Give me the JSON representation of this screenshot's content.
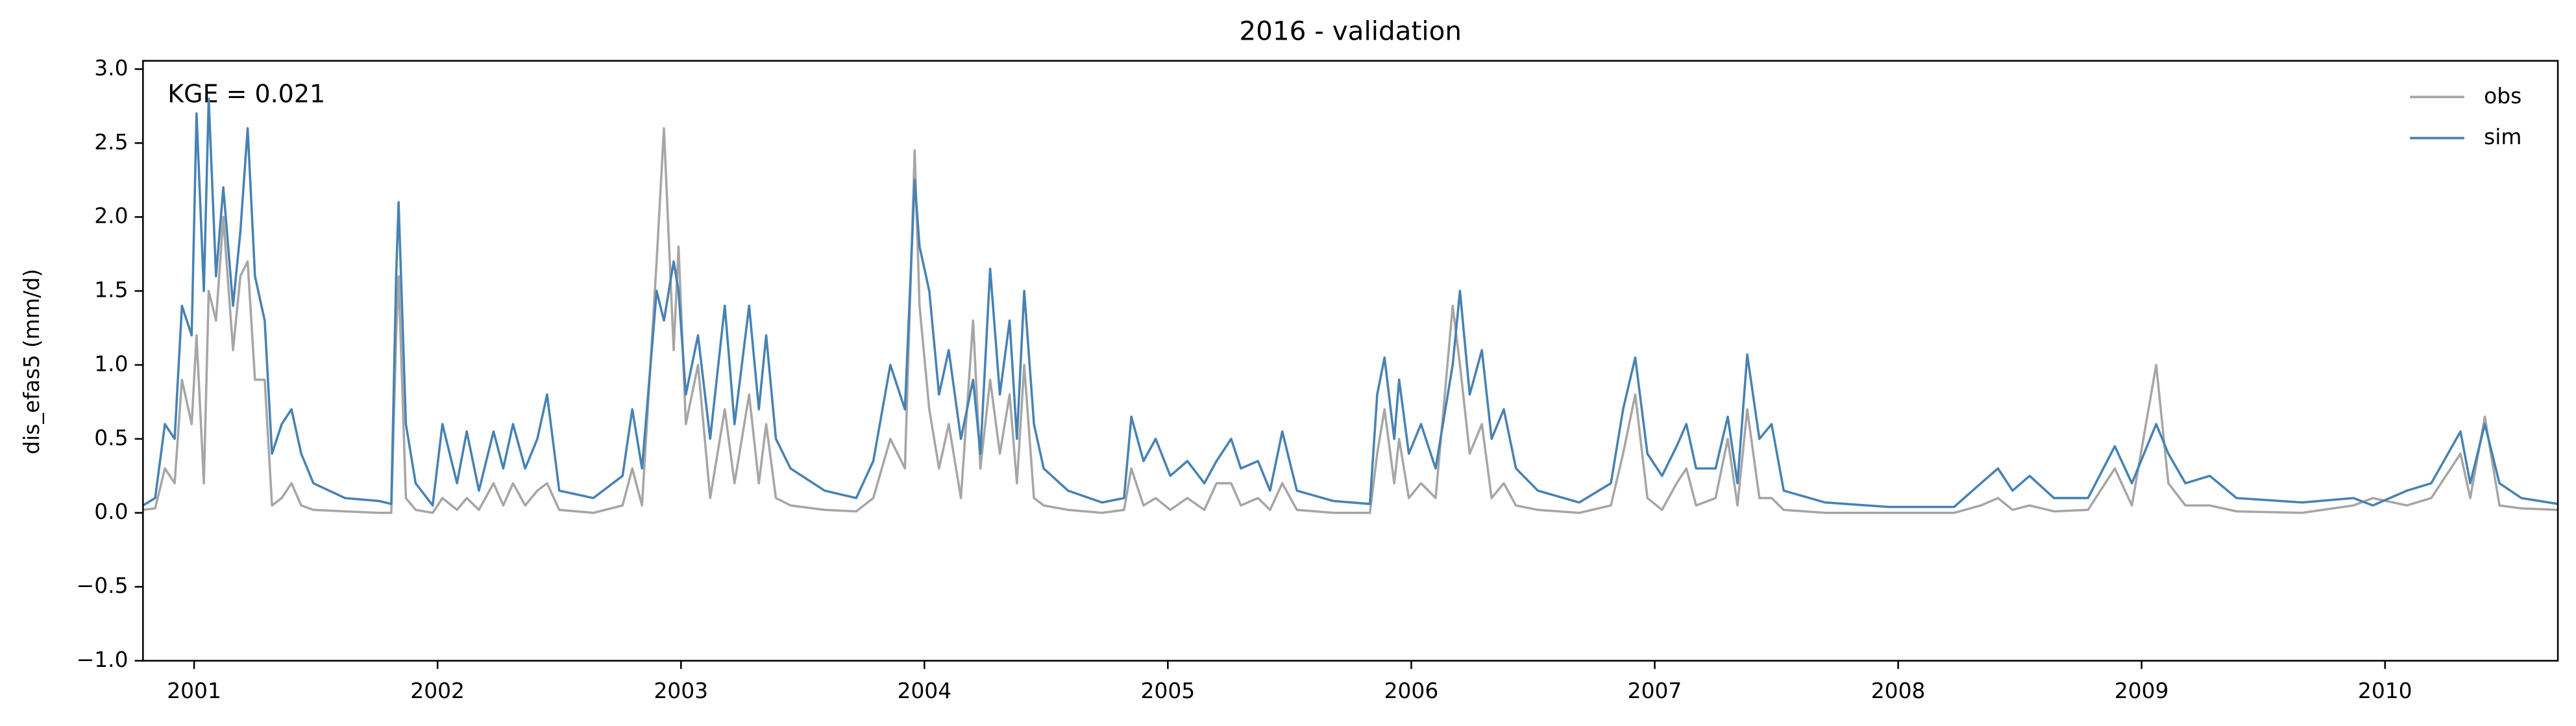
{
  "chart_data": {
    "type": "line",
    "title": "2016 - validation",
    "ylabel": "dis_efas5 (mm/d)",
    "annotation": "KGE = 0.021",
    "legend": "upper right",
    "x": [
      2000.79,
      2000.84,
      2000.88,
      2000.92,
      2000.95,
      2000.99,
      2001.01,
      2001.04,
      2001.06,
      2001.09,
      2001.12,
      2001.16,
      2001.19,
      2001.22,
      2001.25,
      2001.29,
      2001.32,
      2001.36,
      2001.4,
      2001.44,
      2001.49,
      2001.62,
      2001.76,
      2001.81,
      2001.83,
      2001.84,
      2001.87,
      2001.91,
      2001.98,
      2002.02,
      2002.08,
      2002.12,
      2002.17,
      2002.23,
      2002.27,
      2002.31,
      2002.36,
      2002.41,
      2002.45,
      2002.5,
      2002.64,
      2002.76,
      2002.8,
      2002.84,
      2002.9,
      2002.93,
      2002.97,
      2002.99,
      2003.02,
      2003.07,
      2003.12,
      2003.18,
      2003.22,
      2003.28,
      2003.32,
      2003.35,
      2003.39,
      2003.45,
      2003.59,
      2003.72,
      2003.79,
      2003.86,
      2003.92,
      2003.96,
      2003.98,
      2004.02,
      2004.06,
      2004.1,
      2004.15,
      2004.2,
      2004.23,
      2004.27,
      2004.31,
      2004.35,
      2004.38,
      2004.41,
      2004.45,
      2004.49,
      2004.59,
      2004.73,
      2004.82,
      2004.85,
      2004.9,
      2004.95,
      2005.01,
      2005.08,
      2005.15,
      2005.2,
      2005.26,
      2005.3,
      2005.37,
      2005.42,
      2005.47,
      2005.53,
      2005.68,
      2005.83,
      2005.86,
      2005.89,
      2005.93,
      2005.95,
      2005.99,
      2006.04,
      2006.1,
      2006.17,
      2006.2,
      2006.24,
      2006.29,
      2006.33,
      2006.38,
      2006.43,
      2006.52,
      2006.69,
      2006.82,
      2006.87,
      2006.92,
      2006.97,
      2007.03,
      2007.09,
      2007.13,
      2007.17,
      2007.25,
      2007.3,
      2007.34,
      2007.38,
      2007.43,
      2007.48,
      2007.53,
      2007.7,
      2007.96,
      2008.23,
      2008.34,
      2008.41,
      2008.47,
      2008.54,
      2008.64,
      2008.78,
      2008.89,
      2008.96,
      2009.06,
      2009.11,
      2009.18,
      2009.28,
      2009.39,
      2009.66,
      2009.87,
      2009.95,
      2010.09,
      2010.19,
      2010.31,
      2010.35,
      2010.41,
      2010.47,
      2010.56,
      2010.71
    ],
    "series": [
      {
        "name": "obs",
        "color": "#a6a6a6",
        "values": [
          0.02,
          0.03,
          0.3,
          0.2,
          0.9,
          0.6,
          1.2,
          0.2,
          1.5,
          1.3,
          2.0,
          1.1,
          1.6,
          1.7,
          0.9,
          0.9,
          0.05,
          0.1,
          0.2,
          0.05,
          0.02,
          0.01,
          0,
          0,
          1.2,
          1.6,
          0.1,
          0.02,
          0,
          0.1,
          0.02,
          0.1,
          0.02,
          0.2,
          0.05,
          0.2,
          0.05,
          0.15,
          0.2,
          0.02,
          0,
          0.05,
          0.3,
          0.05,
          1.7,
          2.6,
          1.1,
          1.8,
          0.6,
          1.0,
          0.1,
          0.7,
          0.2,
          0.8,
          0.2,
          0.6,
          0.1,
          0.05,
          0.02,
          0.01,
          0.1,
          0.5,
          0.3,
          2.45,
          1.4,
          0.7,
          0.3,
          0.6,
          0.1,
          1.3,
          0.3,
          0.9,
          0.4,
          0.8,
          0.2,
          1.0,
          0.1,
          0.05,
          0.02,
          0,
          0.02,
          0.3,
          0.05,
          0.1,
          0.02,
          0.1,
          0.02,
          0.2,
          0.2,
          0.05,
          0.1,
          0.02,
          0.2,
          0.02,
          0,
          0,
          0.4,
          0.7,
          0.2,
          0.5,
          0.1,
          0.2,
          0.1,
          1.4,
          1.0,
          0.4,
          0.6,
          0.1,
          0.2,
          0.05,
          0.02,
          0,
          0.05,
          0.4,
          0.8,
          0.1,
          0.02,
          0.2,
          0.3,
          0.05,
          0.1,
          0.5,
          0.05,
          0.7,
          0.1,
          0.1,
          0.02,
          0,
          0,
          0,
          0.05,
          0.1,
          0.02,
          0.05,
          0.01,
          0.02,
          0.3,
          0.05,
          1.0,
          0.2,
          0.05,
          0.05,
          0.01,
          0,
          0.05,
          0.1,
          0.05,
          0.1,
          0.4,
          0.1,
          0.65,
          0.05,
          0.03,
          0.02
        ]
      },
      {
        "name": "sim",
        "color": "#4682b4",
        "values": [
          0.05,
          0.1,
          0.6,
          0.5,
          1.4,
          1.2,
          2.7,
          1.5,
          2.8,
          1.6,
          2.2,
          1.4,
          1.9,
          2.6,
          1.6,
          1.3,
          0.4,
          0.6,
          0.7,
          0.4,
          0.2,
          0.1,
          0.08,
          0.06,
          1.6,
          2.1,
          0.6,
          0.2,
          0.05,
          0.6,
          0.2,
          0.55,
          0.15,
          0.55,
          0.3,
          0.6,
          0.3,
          0.5,
          0.8,
          0.15,
          0.1,
          0.25,
          0.7,
          0.3,
          1.5,
          1.3,
          1.7,
          1.5,
          0.8,
          1.2,
          0.5,
          1.4,
          0.6,
          1.4,
          0.7,
          1.2,
          0.5,
          0.3,
          0.15,
          0.1,
          0.35,
          1.0,
          0.7,
          2.25,
          1.8,
          1.5,
          0.8,
          1.1,
          0.5,
          0.9,
          0.4,
          1.65,
          0.8,
          1.3,
          0.5,
          1.5,
          0.6,
          0.3,
          0.15,
          0.07,
          0.1,
          0.65,
          0.35,
          0.5,
          0.25,
          0.35,
          0.2,
          0.35,
          0.5,
          0.3,
          0.35,
          0.15,
          0.55,
          0.15,
          0.08,
          0.06,
          0.8,
          1.05,
          0.5,
          0.9,
          0.4,
          0.6,
          0.3,
          1.0,
          1.5,
          0.8,
          1.1,
          0.5,
          0.7,
          0.3,
          0.15,
          0.07,
          0.2,
          0.7,
          1.05,
          0.4,
          0.25,
          0.45,
          0.6,
          0.3,
          0.3,
          0.65,
          0.2,
          1.07,
          0.5,
          0.6,
          0.15,
          0.07,
          0.04,
          0.04,
          0.2,
          0.3,
          0.15,
          0.25,
          0.1,
          0.1,
          0.45,
          0.2,
          0.6,
          0.4,
          0.2,
          0.25,
          0.1,
          0.07,
          0.1,
          0.05,
          0.15,
          0.2,
          0.55,
          0.2,
          0.6,
          0.2,
          0.1,
          0.06
        ]
      }
    ],
    "xlim": [
      2000.79,
      2010.71
    ],
    "xticks": [
      2001,
      2002,
      2003,
      2004,
      2005,
      2006,
      2007,
      2008,
      2009,
      2010
    ],
    "ylim": [
      -1,
      3.056
    ],
    "yticks": [
      {
        "value": -1,
        "label": "−1.0"
      },
      {
        "value": -0.5,
        "label": "−0.5"
      },
      {
        "value": 0,
        "label": "0.0"
      },
      0.5,
      {
        "value": 1,
        "label": "1.0"
      },
      1.5,
      {
        "value": 2,
        "label": "2.0"
      },
      2.5,
      {
        "value": 3,
        "label": "3.0"
      }
    ],
    "grid": false
  }
}
